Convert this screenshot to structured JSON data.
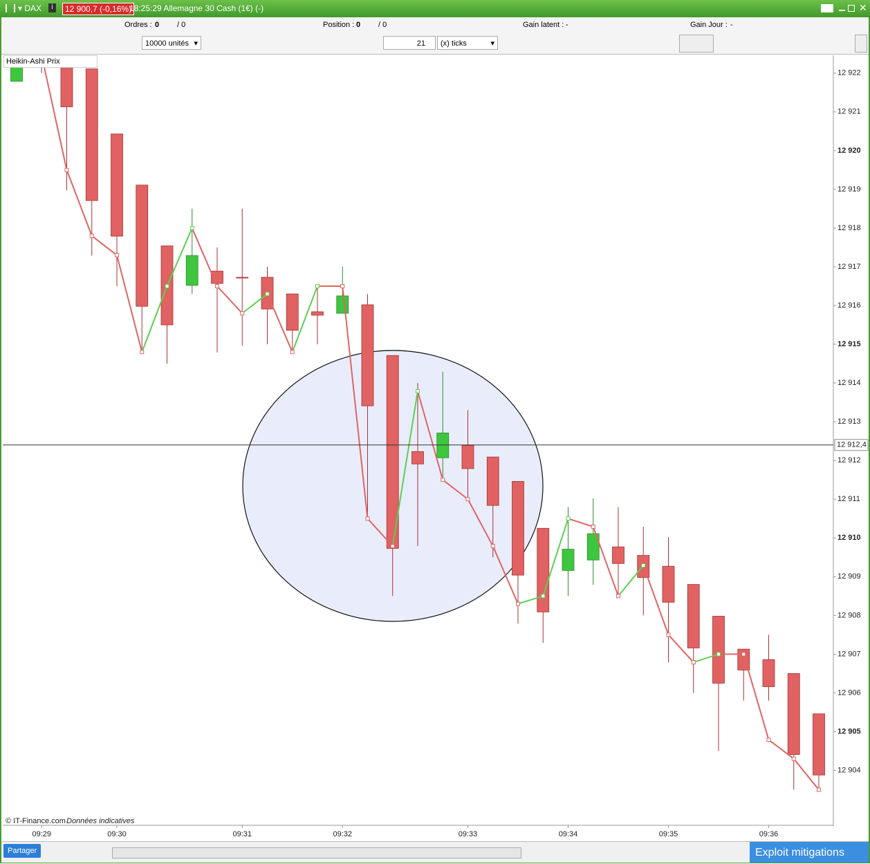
{
  "header": {
    "symbol": "DAX",
    "price": "12 900,7 (-0,16%)",
    "title": "18:25:29 Allemagne 30 Cash (1€) (-)"
  },
  "toolbar": {
    "orders_label": "Ordres :",
    "orders": "0",
    "orders_sep": "/ 0",
    "position_label": "Position :",
    "position": "0",
    "position_sep": "/ 0",
    "gain_latent_label": "Gain latent :",
    "gain_latent": "-",
    "gain_jour_label": "Gain Jour :",
    "gain_jour": "-",
    "units": "10000 unités",
    "ticks_count": "21",
    "ticks_unit": "(x) ticks"
  },
  "chart_data": {
    "type": "candlestick",
    "title": "Heikin-Ashi Prix",
    "categories": [
      null,
      "09:29",
      null,
      null,
      "09:30",
      null,
      null,
      null,
      null,
      "09:31",
      null,
      null,
      null,
      "09:32",
      null,
      null,
      null,
      null,
      "09:33",
      null,
      null,
      null,
      "09:34",
      null,
      null,
      null,
      "09:35",
      null,
      null,
      null,
      "09:36",
      null,
      null
    ],
    "open": [
      12921.79,
      12922.64,
      12922.38,
      12922.11,
      12920.43,
      12919.11,
      12917.54,
      12916.52,
      12916.89,
      12916.73,
      12916.73,
      12916.3,
      12915.84,
      12915.8,
      12916.02,
      12914.71,
      12912.23,
      12912.07,
      12912.39,
      12912.09,
      12911.46,
      12910.25,
      12909.16,
      12909.43,
      12909.77,
      12909.55,
      12909.27,
      12908.8,
      12907.98,
      12907.13,
      12906.86,
      12906.5,
      12905.46
    ],
    "high": [
      12922.32,
      12922.73,
      12922.46,
      12922.11,
      12920.43,
      12919.11,
      12917.54,
      12918.5,
      12917.5,
      12918.5,
      12917,
      12916.3,
      12916.5,
      12917,
      12916.3,
      12914.71,
      12914,
      12914.29,
      12913.3,
      12912.09,
      12911.46,
      12910.25,
      12910.8,
      12911.02,
      12910.8,
      12910.29,
      12910.02,
      12908.8,
      12907.98,
      12907.13,
      12907.5,
      12906.5,
      12905.46
    ],
    "low": [
      12921.79,
      12922,
      12918.98,
      12917.29,
      12916.5,
      12914.79,
      12914.5,
      12916.3,
      12914.79,
      12914.96,
      12915,
      12914.86,
      12915,
      12915.8,
      12910.5,
      12908.5,
      12909.79,
      12911.57,
      12911,
      12909.5,
      12907.79,
      12907.29,
      12908.5,
      12908.79,
      12908.5,
      12908,
      12906.79,
      12906,
      12904.5,
      12905.8,
      12905.8,
      12903.5,
      12903.5
    ],
    "close": [
      12922.25,
      12922.25,
      12921.13,
      12918.71,
      12917.79,
      12915.98,
      12915.5,
      12917.29,
      12916.57,
      12916.71,
      12915.91,
      12915.36,
      12915.75,
      12916.25,
      12913.41,
      12909.73,
      12911.91,
      12912.71,
      12911.79,
      12910.84,
      12909.04,
      12908.09,
      12909.71,
      12910.11,
      12909.34,
      12908.98,
      12908.34,
      12907.16,
      12906.25,
      12906.59,
      12906.16,
      12904.41,
      12903.88
    ],
    "line": {
      "values": [
        null,
        12922.46,
        12919.5,
        12917.8,
        12917.3,
        12914.8,
        12916.5,
        12918,
        12916.5,
        12915.8,
        12916.3,
        12914.8,
        12916.5,
        12916.5,
        12910.5,
        12909.79,
        12913.79,
        12911.5,
        12911,
        12909.79,
        12908.3,
        12908.5,
        12910.5,
        12910.29,
        12908.5,
        12909.29,
        12907.5,
        12906.79,
        12907,
        12907,
        12904.79,
        12904.3,
        12903.5
      ],
      "up_color": "#5ccf52",
      "down_color": "#e06464"
    },
    "up_color": "#3fc63f",
    "down_color": "#e06262",
    "up_border": "#2a8a2a",
    "down_border": "#a83232",
    "ylim": [
      12902.6,
      12922.46
    ],
    "yticks": [
      {
        "value": 12904,
        "label": "12 904"
      },
      {
        "value": 12905,
        "label": "12 905"
      },
      {
        "value": 12906,
        "label": "12 906"
      },
      {
        "value": 12907,
        "label": "12 907"
      },
      {
        "value": 12908,
        "label": "12 908"
      },
      {
        "value": 12909,
        "label": "12 909"
      },
      {
        "value": 12910,
        "label": "12 910"
      },
      {
        "value": 12911,
        "label": "12 911"
      },
      {
        "value": 12912,
        "label": "12 912"
      },
      {
        "value": 12913,
        "label": "12 913"
      },
      {
        "value": 12914,
        "label": "12 914"
      },
      {
        "value": 12915,
        "label": "12 915"
      },
      {
        "value": 12916,
        "label": "12 916"
      },
      {
        "value": 12917,
        "label": "12 917"
      },
      {
        "value": 12918,
        "label": "12 918"
      },
      {
        "value": 12919,
        "label": "12 919"
      },
      {
        "value": 12920,
        "label": "12 920"
      },
      {
        "value": 12921,
        "label": "12 921"
      },
      {
        "value": 12922,
        "label": "12 922"
      }
    ],
    "price_line": {
      "value": 12912.4,
      "label": "12 912,4"
    },
    "grid": false
  },
  "footer": {
    "copyright": "© IT-Finance.com",
    "note": "Données indicatives"
  },
  "bottom": {
    "share": "Partager",
    "overlay": "Exploit mitigations"
  }
}
